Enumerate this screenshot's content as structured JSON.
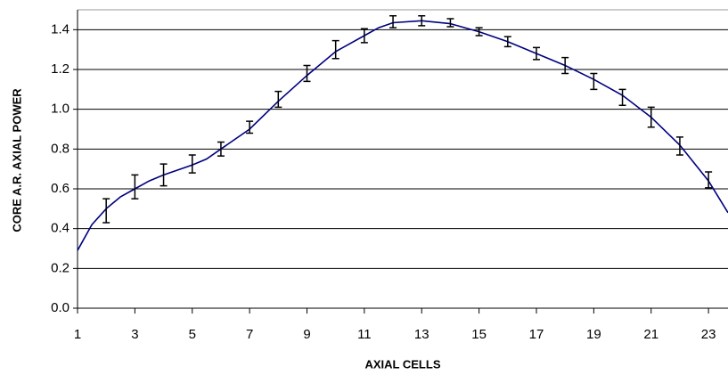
{
  "chart_data": {
    "type": "line",
    "xlabel": "AXIAL CELLS",
    "ylabel": "CORE A.R. AXIAL POWER",
    "xlim": [
      1,
      23.68
    ],
    "xticks": [
      1,
      3,
      5,
      7,
      9,
      11,
      13,
      15,
      17,
      19,
      21,
      23
    ],
    "ylim": [
      0,
      1.5
    ],
    "yticks": [
      {
        "value": 0,
        "label": "0.0"
      },
      0.2,
      0.4,
      0.6,
      0.8,
      {
        "value": 1,
        "label": "1.0"
      },
      1.2,
      1.4
    ],
    "grid": true,
    "line": {
      "color": "#000080",
      "x": [
        1,
        1.5,
        2,
        2.5,
        3,
        3.5,
        4,
        5,
        5.5,
        6,
        7,
        8,
        9,
        10,
        11,
        11.5,
        12,
        13,
        14,
        15,
        16,
        17,
        18,
        19,
        20,
        21,
        22,
        23,
        23.68
      ],
      "values": [
        0.29,
        0.42,
        0.5,
        0.56,
        0.6,
        0.64,
        0.67,
        0.72,
        0.75,
        0.8,
        0.9,
        1.04,
        1.17,
        1.29,
        1.37,
        1.41,
        1.435,
        1.445,
        1.43,
        1.39,
        1.34,
        1.28,
        1.22,
        1.15,
        1.07,
        0.96,
        0.82,
        0.64,
        0.48
      ]
    },
    "error_bars": {
      "color": "#000000",
      "x": [
        2,
        3,
        4,
        5,
        6,
        7,
        8,
        9,
        10,
        11,
        12,
        13,
        14,
        15,
        16,
        17,
        18,
        19,
        20,
        21,
        22,
        23
      ],
      "values": [
        0.49,
        0.61,
        0.67,
        0.725,
        0.8,
        0.91,
        1.05,
        1.18,
        1.3,
        1.37,
        1.44,
        1.445,
        1.435,
        1.39,
        1.34,
        1.28,
        1.22,
        1.14,
        1.06,
        0.96,
        0.815,
        0.645
      ],
      "errors": [
        0.06,
        0.06,
        0.055,
        0.045,
        0.035,
        0.03,
        0.04,
        0.04,
        0.045,
        0.035,
        0.03,
        0.025,
        0.02,
        0.02,
        0.025,
        0.03,
        0.04,
        0.04,
        0.04,
        0.05,
        0.045,
        0.04
      ]
    }
  }
}
